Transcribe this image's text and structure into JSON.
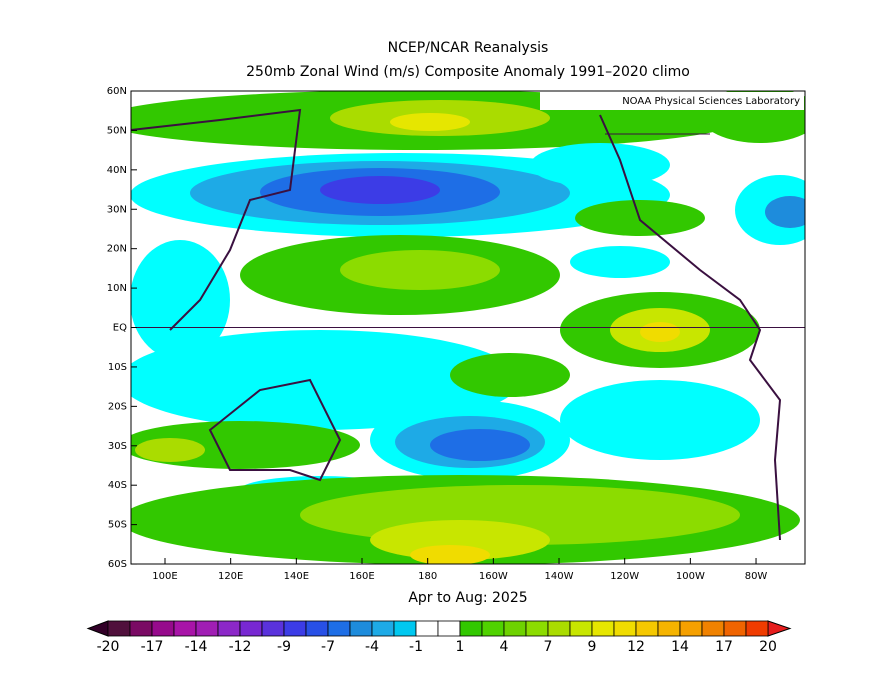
{
  "header": {
    "title": "NCEP/NCAR Reanalysis",
    "subtitle": "250mb Zonal Wind (m/s) Composite Anomaly 1991–2020 climo"
  },
  "map": {
    "credit": "NOAA Physical Sciences Laboratory",
    "x_labels": [
      "100E",
      "120E",
      "140E",
      "160E",
      "180",
      "160W",
      "140W",
      "120W",
      "100W",
      "80W"
    ],
    "y_labels": [
      "60N",
      "50N",
      "40N",
      "30N",
      "20N",
      "10N",
      "EQ",
      "10S",
      "20S",
      "30S",
      "40S",
      "50S",
      "60S"
    ],
    "period": "Apr to Aug: 2025"
  },
  "colorbar": {
    "labels": [
      -20,
      -17,
      -14,
      -12,
      -9,
      -7,
      -4,
      -1,
      1,
      4,
      7,
      9,
      12,
      14,
      17,
      20
    ],
    "low_color": "#320028",
    "high_color": "#e61e1e",
    "colors": [
      "#50103c",
      "#7a0a64",
      "#960a8c",
      "#a814a8",
      "#a01eb4",
      "#8c28c8",
      "#7828d2",
      "#5a32dc",
      "#3c3ce6",
      "#2850e6",
      "#1e6ee6",
      "#1e8cdc",
      "#1eaae6",
      "#00c8f0",
      "#ffffff",
      "#ffffff",
      "#32c800",
      "#50d200",
      "#6ed200",
      "#8cdc00",
      "#aadc00",
      "#c8e600",
      "#e6e600",
      "#f0dc00",
      "#f5c800",
      "#f5b400",
      "#f5a000",
      "#f08200",
      "#f06400",
      "#f03c00"
    ]
  }
}
